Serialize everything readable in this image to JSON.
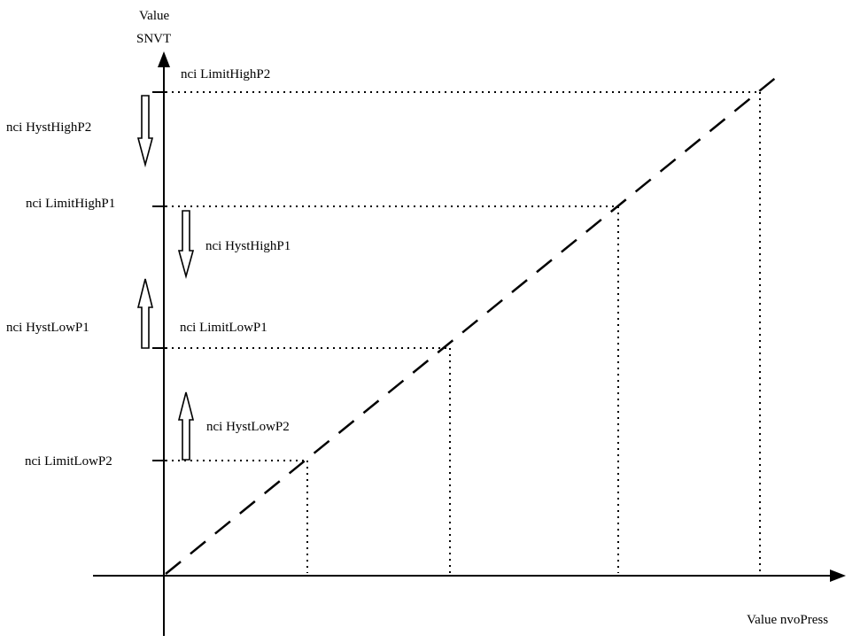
{
  "axes": {
    "y_label_line1": "Value",
    "y_label_line2": "SNVT",
    "x_label": "Value nvoPress"
  },
  "limits": {
    "limit_high_p2": "nci LimitHighP2",
    "limit_high_p1": "nci LimitHighP1",
    "limit_low_p1": "nci LimitLowP1",
    "limit_low_p2": "nci LimitLowP2"
  },
  "hysteresis": {
    "hyst_high_p2": "nci HystHighP2",
    "hyst_high_p1": "nci HystHighP1",
    "hyst_low_p1": "nci HystLowP1",
    "hyst_low_p2": "nci HystLowP2"
  },
  "hysteresis_directions": {
    "hyst_high_p2": "down",
    "hyst_high_p1": "down",
    "hyst_low_p1": "up",
    "hyst_low_p2": "up"
  },
  "colors": {
    "line": "#000000",
    "background": "#ffffff"
  }
}
